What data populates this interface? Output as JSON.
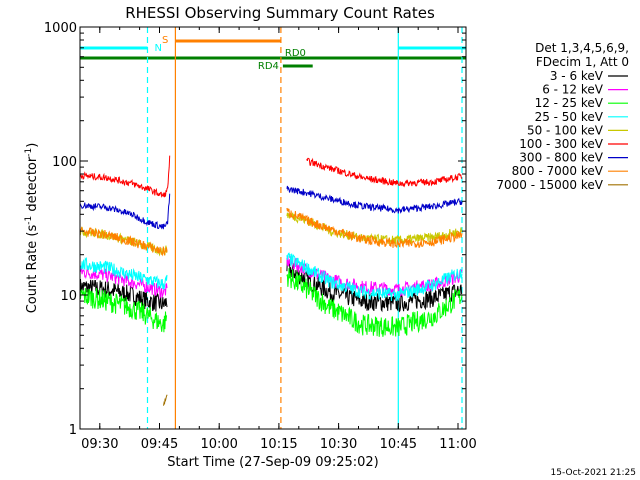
{
  "chart_data": {
    "type": "line",
    "title": "RHESSI Observing Summary Count Rates",
    "xlabel": "Start Time (27-Sep-09 09:25:02)",
    "ylabel_main": "Count Rate (s",
    "ylabel_sup1": "-1",
    "ylabel_mid": " detector",
    "ylabel_sup2": "-1",
    "ylabel_end": ")",
    "y_scale": "log",
    "ylim": [
      1,
      1000
    ],
    "xlim": [
      "09:25:02",
      "11:02:00"
    ],
    "x_ticks": [
      "09:30",
      "09:45",
      "10:00",
      "10:15",
      "10:30",
      "10:45",
      "11:00"
    ],
    "y_ticks": [
      "1",
      "10",
      "100",
      "1000"
    ],
    "legend_header": [
      "Det 1,3,4,5,6,9,",
      "FDecim 1, Att 0"
    ],
    "legend_position": "right",
    "footer_date": "15-Oct-2021 21:25",
    "flags": [
      {
        "label": "N",
        "color": "#00ffff",
        "segments": [
          [
            "09:25:02",
            "09:42:00"
          ],
          [
            "10:45:00",
            "11:02:00"
          ]
        ]
      },
      {
        "label": "S",
        "color": "#ff8000",
        "segments": [
          [
            "09:49:00",
            "10:15:30"
          ]
        ]
      },
      {
        "label": "RD0",
        "color": "#007f00",
        "segments": [
          [
            "09:25:02",
            "11:02:00"
          ]
        ]
      },
      {
        "label": "RD4",
        "color": "#007f00",
        "segments": [
          [
            "10:16:00",
            "10:23:30"
          ]
        ]
      }
    ],
    "series": [
      {
        "name": "3 - 6 keV",
        "color": "#000000",
        "pre": [
          [
            "09:25:02",
            11.5
          ],
          [
            "09:32",
            11
          ],
          [
            "09:38",
            10
          ],
          [
            "09:42",
            9
          ],
          [
            "09:46",
            8.5
          ],
          [
            "09:47",
            9
          ]
        ],
        "post": [
          [
            "10:17",
            16
          ],
          [
            "10:22",
            13
          ],
          [
            "10:28",
            10.5
          ],
          [
            "10:36",
            9
          ],
          [
            "10:45",
            8.7
          ],
          [
            "10:54",
            9.5
          ],
          [
            "11:01",
            11
          ]
        ]
      },
      {
        "name": "6 - 12 keV",
        "color": "#ff00ff",
        "pre": [
          [
            "09:25:02",
            15
          ],
          [
            "09:32",
            14
          ],
          [
            "09:38",
            12.5
          ],
          [
            "09:42",
            11.5
          ],
          [
            "09:46",
            10.5
          ],
          [
            "09:47",
            11
          ]
        ],
        "post": [
          [
            "10:17",
            18
          ],
          [
            "10:22",
            15.5
          ],
          [
            "10:28",
            13
          ],
          [
            "10:36",
            11.5
          ],
          [
            "10:45",
            11
          ],
          [
            "10:54",
            12
          ],
          [
            "11:01",
            14
          ]
        ]
      },
      {
        "name": "12 - 25 keV",
        "color": "#00ff00",
        "pre": [
          [
            "09:25:02",
            10
          ],
          [
            "09:32",
            9
          ],
          [
            "09:38",
            8
          ],
          [
            "09:42",
            7
          ],
          [
            "09:46",
            6
          ],
          [
            "09:47",
            7
          ]
        ],
        "post": [
          [
            "10:17",
            14
          ],
          [
            "10:22",
            11
          ],
          [
            "10:28",
            8
          ],
          [
            "10:36",
            6
          ],
          [
            "10:45",
            5.7
          ],
          [
            "10:54",
            7
          ],
          [
            "11:01",
            10
          ]
        ]
      },
      {
        "name": "25 - 50 keV",
        "color": "#00ffff",
        "pre": [
          [
            "09:25:02",
            17
          ],
          [
            "09:32",
            16
          ],
          [
            "09:38",
            14
          ],
          [
            "09:42",
            13
          ],
          [
            "09:46",
            12
          ],
          [
            "09:47",
            13
          ]
        ],
        "post": [
          [
            "10:17",
            19
          ],
          [
            "10:22",
            16
          ],
          [
            "10:28",
            12.5
          ],
          [
            "10:36",
            10.5
          ],
          [
            "10:45",
            10
          ],
          [
            "10:54",
            12
          ],
          [
            "11:01",
            15
          ]
        ]
      },
      {
        "name": "50 - 100 keV",
        "color": "#c8c800",
        "pre": [
          [
            "09:25:02",
            30
          ],
          [
            "09:32",
            28
          ],
          [
            "09:38",
            25
          ],
          [
            "09:42",
            23
          ],
          [
            "09:46",
            21
          ],
          [
            "09:47",
            22
          ]
        ],
        "post": [
          [
            "10:17",
            40
          ],
          [
            "10:22",
            36
          ],
          [
            "10:28",
            30
          ],
          [
            "10:36",
            26.5
          ],
          [
            "10:45",
            25.5
          ],
          [
            "10:54",
            27
          ],
          [
            "11:01",
            30
          ]
        ]
      },
      {
        "name": "100 - 300 keV",
        "color": "#ff0000",
        "pre": [
          [
            "09:25:02",
            78
          ],
          [
            "09:32",
            75
          ],
          [
            "09:38",
            68
          ],
          [
            "09:42",
            62
          ],
          [
            "09:46",
            55
          ],
          [
            "09:47",
            60
          ],
          [
            "09:47:40",
            115
          ]
        ],
        "post": [
          [
            "10:22",
            100
          ],
          [
            "10:28",
            88
          ],
          [
            "10:36",
            75
          ],
          [
            "10:45",
            68
          ],
          [
            "10:54",
            70
          ],
          [
            "11:01",
            77
          ]
        ]
      },
      {
        "name": "300 - 800 keV",
        "color": "#0000c8",
        "pre": [
          [
            "09:25:02",
            47
          ],
          [
            "09:32",
            45
          ],
          [
            "09:38",
            40
          ],
          [
            "09:42",
            35
          ],
          [
            "09:46",
            32
          ],
          [
            "09:47",
            34
          ],
          [
            "09:47:40",
            60
          ]
        ],
        "post": [
          [
            "10:17",
            62
          ],
          [
            "10:22",
            58
          ],
          [
            "10:28",
            52
          ],
          [
            "10:36",
            46
          ],
          [
            "10:45",
            43
          ],
          [
            "10:54",
            46
          ],
          [
            "11:01",
            50
          ]
        ]
      },
      {
        "name": "800 - 7000 keV",
        "color": "#ff8000",
        "pre": [
          [
            "09:25:02",
            30
          ],
          [
            "09:32",
            28
          ],
          [
            "09:38",
            25
          ],
          [
            "09:42",
            23
          ],
          [
            "09:46",
            21
          ],
          [
            "09:47",
            22
          ]
        ],
        "post": [
          [
            "10:17",
            42
          ],
          [
            "10:22",
            36
          ],
          [
            "10:28",
            31
          ],
          [
            "10:36",
            26
          ],
          [
            "10:45",
            24
          ],
          [
            "10:54",
            25
          ],
          [
            "11:01",
            28
          ]
        ]
      },
      {
        "name": "7000 - 15000 keV",
        "color": "#a07000",
        "pre": [
          [
            "09:46",
            1.5
          ],
          [
            "09:47",
            1.8
          ]
        ],
        "post": []
      }
    ],
    "vertical_lines": [
      {
        "time": "09:42:00",
        "color": "#00ffff",
        "style": "dashed"
      },
      {
        "time": "09:49:00",
        "color": "#ff8000",
        "style": "solid"
      },
      {
        "time": "10:15:30",
        "color": "#ff8000",
        "style": "dashed"
      },
      {
        "time": "10:45:00",
        "color": "#00ffff",
        "style": "solid"
      },
      {
        "time": "11:01:00",
        "color": "#00ffff",
        "style": "dashed"
      }
    ]
  }
}
